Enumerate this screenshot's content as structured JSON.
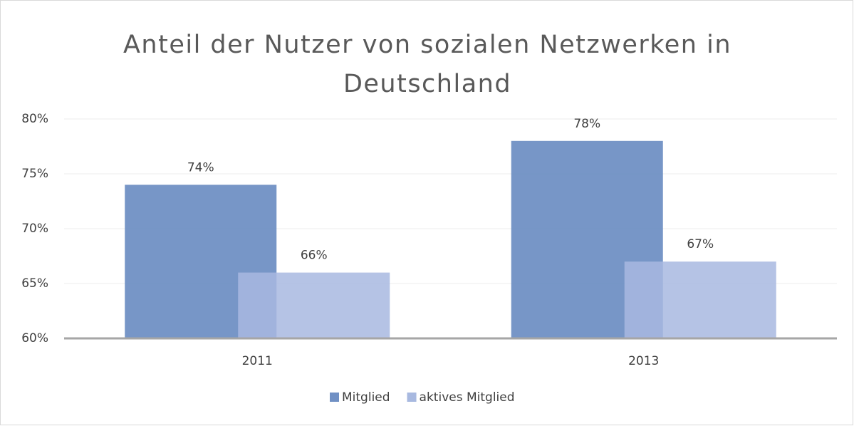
{
  "chart_data": {
    "type": "bar",
    "title": "Anteil der Nutzer von sozialen Netzwerken in Deutschland",
    "categories": [
      "2011",
      "2013"
    ],
    "series": [
      {
        "name": "Mitglied",
        "color": "#7090c4",
        "values": [
          74,
          78
        ],
        "value_labels": [
          "74%",
          "78%"
        ]
      },
      {
        "name": "aktives Mitglied",
        "color": "#a8b9e0",
        "values": [
          66,
          67
        ],
        "value_labels": [
          "66%",
          "67%"
        ]
      }
    ],
    "ylim": [
      60,
      80
    ],
    "yticks": [
      {
        "value": 60,
        "label": "60%"
      },
      {
        "value": 65,
        "label": "65%"
      },
      {
        "value": 70,
        "label": "70%"
      },
      {
        "value": 75,
        "label": "75%"
      },
      {
        "value": 80,
        "label": "80%"
      }
    ],
    "grid": true,
    "legend": "bottom"
  }
}
